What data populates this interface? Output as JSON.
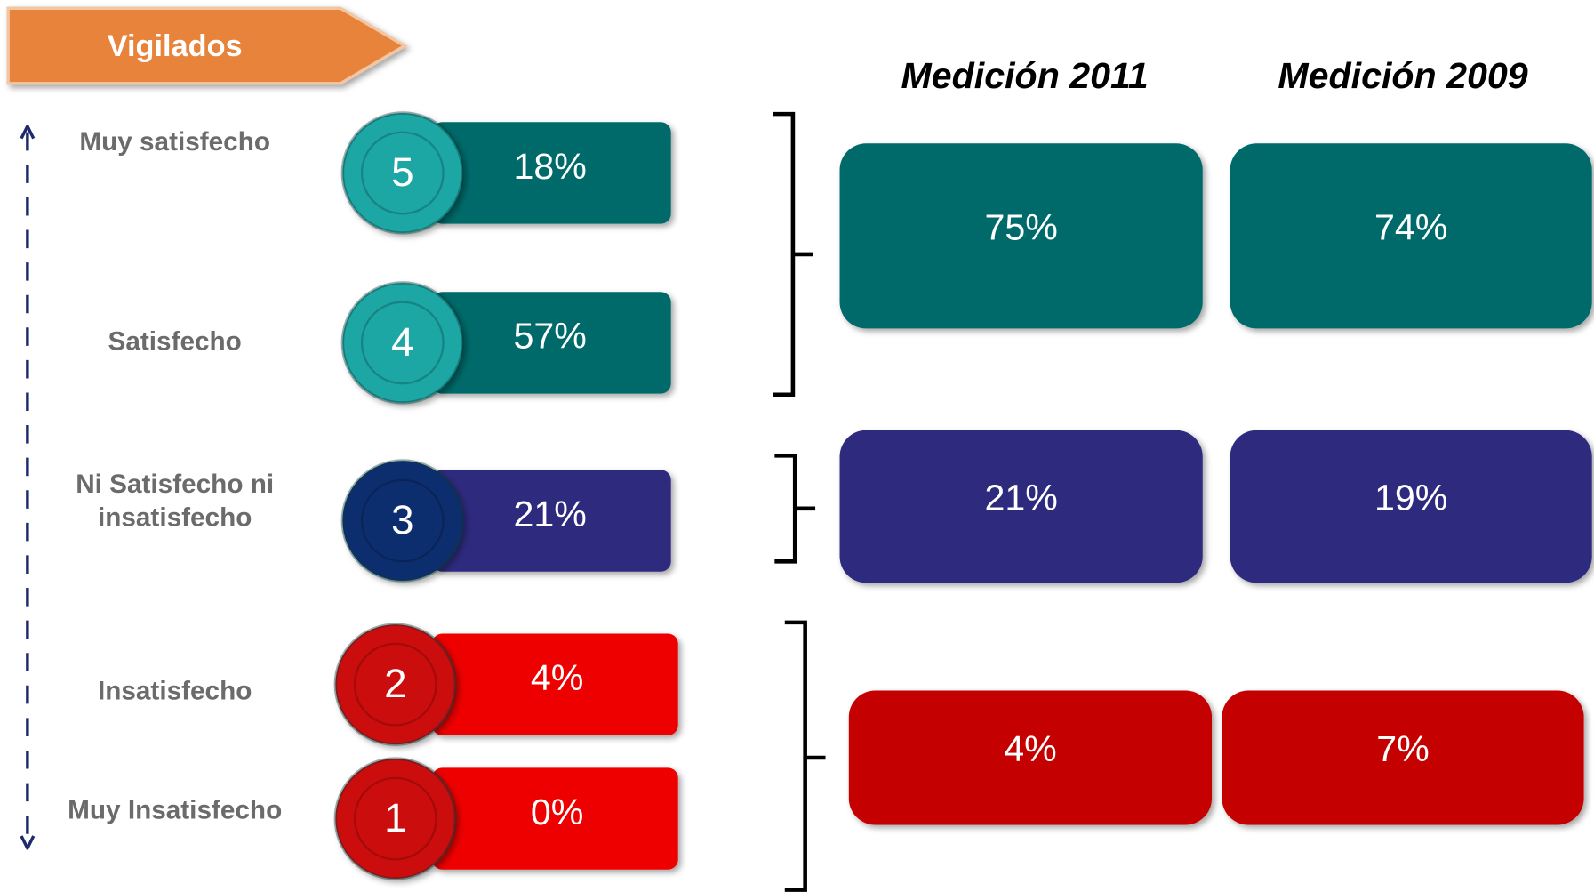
{
  "header": {
    "title": "Vigilados"
  },
  "columns": [
    "Medición 2011",
    "Medición 2009"
  ],
  "levels": [
    {
      "number": "5",
      "label": [
        "Muy satisfecho"
      ],
      "value": "18%"
    },
    {
      "number": "4",
      "label": [
        "Satisfecho"
      ],
      "value": "57%"
    },
    {
      "number": "3",
      "label": [
        "Ni Satisfecho ni",
        "insatisfecho"
      ],
      "value": "21%"
    },
    {
      "number": "2",
      "label": [
        "Insatisfecho"
      ],
      "value": "4%"
    },
    {
      "number": "1",
      "label": [
        "Muy Insatisfecho"
      ],
      "value": "0%"
    }
  ],
  "groups": [
    {
      "values": [
        "75%",
        "74%"
      ]
    },
    {
      "values": [
        "21%",
        "19%"
      ]
    },
    {
      "values": [
        "4%",
        "7%"
      ]
    }
  ]
}
